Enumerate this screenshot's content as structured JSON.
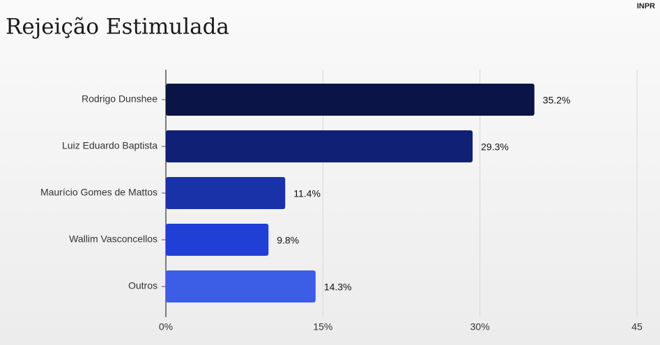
{
  "brand": "INPR",
  "chart_data": {
    "type": "bar",
    "orientation": "horizontal",
    "title": "Rejeição Estimulada",
    "categories": [
      "Rodrigo Dunshee",
      "Luiz Eduardo Baptista",
      "Maurício Gomes de Mattos",
      "Wallim Vasconcellos",
      "Outros"
    ],
    "values": [
      35.2,
      29.3,
      11.4,
      9.8,
      14.3
    ],
    "value_labels": [
      "35.2%",
      "29.3%",
      "11.4%",
      "9.8%",
      "14.3%"
    ],
    "colors": [
      "#0b1447",
      "#0f2075",
      "#1a32a8",
      "#1f3fd6",
      "#3c5de6"
    ],
    "xlim": [
      0,
      45
    ],
    "xticks": [
      {
        "value": 0,
        "label": "0%"
      },
      {
        "value": 15,
        "label": "15%"
      },
      {
        "value": 30,
        "label": "30%"
      },
      45
    ],
    "grid": true
  }
}
